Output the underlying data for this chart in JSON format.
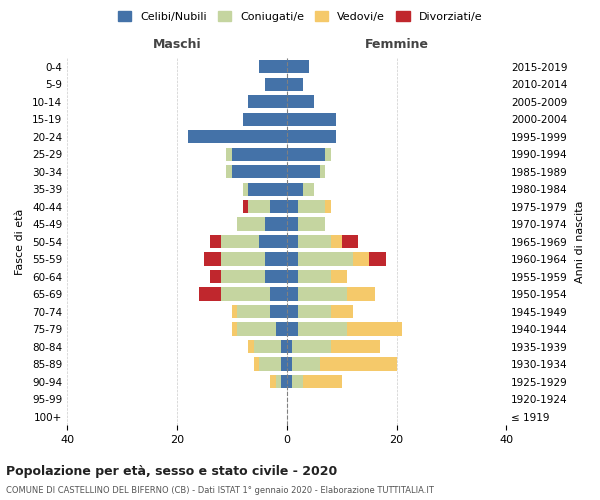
{
  "age_groups": [
    "100+",
    "95-99",
    "90-94",
    "85-89",
    "80-84",
    "75-79",
    "70-74",
    "65-69",
    "60-64",
    "55-59",
    "50-54",
    "45-49",
    "40-44",
    "35-39",
    "30-34",
    "25-29",
    "20-24",
    "15-19",
    "10-14",
    "5-9",
    "0-4"
  ],
  "birth_years": [
    "≤ 1919",
    "1920-1924",
    "1925-1929",
    "1930-1934",
    "1935-1939",
    "1940-1944",
    "1945-1949",
    "1950-1954",
    "1955-1959",
    "1960-1964",
    "1965-1969",
    "1970-1974",
    "1975-1979",
    "1980-1984",
    "1985-1989",
    "1990-1994",
    "1995-1999",
    "2000-2004",
    "2005-2009",
    "2010-2014",
    "2015-2019"
  ],
  "colors": {
    "celibi": "#4472a8",
    "coniugati": "#c5d5a0",
    "vedovi": "#f5c96a",
    "divorziati": "#c0272d"
  },
  "maschi": {
    "celibi": [
      0,
      0,
      1,
      1,
      1,
      2,
      3,
      3,
      4,
      4,
      5,
      4,
      3,
      7,
      10,
      10,
      18,
      8,
      7,
      4,
      5
    ],
    "coniugati": [
      0,
      0,
      1,
      4,
      5,
      7,
      6,
      9,
      8,
      8,
      7,
      5,
      4,
      1,
      1,
      1,
      0,
      0,
      0,
      0,
      0
    ],
    "vedovi": [
      0,
      0,
      1,
      1,
      1,
      1,
      1,
      0,
      0,
      0,
      0,
      0,
      0,
      0,
      0,
      0,
      0,
      0,
      0,
      0,
      0
    ],
    "divorziati": [
      0,
      0,
      0,
      0,
      0,
      0,
      0,
      4,
      2,
      3,
      2,
      0,
      1,
      0,
      0,
      0,
      0,
      0,
      0,
      0,
      0
    ]
  },
  "femmine": {
    "celibi": [
      0,
      0,
      1,
      1,
      1,
      2,
      2,
      2,
      2,
      2,
      2,
      2,
      2,
      3,
      6,
      7,
      9,
      9,
      5,
      3,
      4
    ],
    "coniugati": [
      0,
      0,
      2,
      5,
      7,
      9,
      6,
      9,
      6,
      10,
      6,
      5,
      5,
      2,
      1,
      1,
      0,
      0,
      0,
      0,
      0
    ],
    "vedovi": [
      0,
      0,
      7,
      14,
      9,
      10,
      4,
      5,
      3,
      3,
      2,
      0,
      1,
      0,
      0,
      0,
      0,
      0,
      0,
      0,
      0
    ],
    "divorziati": [
      0,
      0,
      0,
      0,
      0,
      0,
      0,
      0,
      0,
      3,
      3,
      0,
      0,
      0,
      0,
      0,
      0,
      0,
      0,
      0,
      0
    ]
  },
  "xlim": 40,
  "title": "Popolazione per età, sesso e stato civile - 2020",
  "subtitle": "COMUNE DI CASTELLINO DEL BIFERNO (CB) - Dati ISTAT 1° gennaio 2020 - Elaborazione TUTTITALIA.IT",
  "ylabel_left": "Fasce di età",
  "ylabel_right": "Anni di nascita",
  "label_maschi": "Maschi",
  "label_femmine": "Femmine",
  "legend_labels": [
    "Celibi/Nubili",
    "Coniugati/e",
    "Vedovi/e",
    "Divorziati/e"
  ],
  "background": "#ffffff"
}
